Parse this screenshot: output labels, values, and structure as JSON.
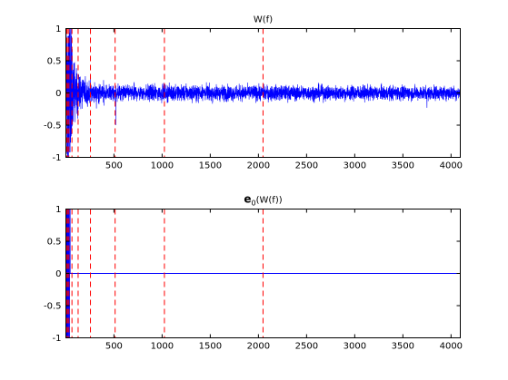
{
  "chart_data": [
    {
      "type": "line",
      "title": "W(f)",
      "xlim": [
        1,
        4096
      ],
      "ylim": [
        -1,
        1
      ],
      "xticks": [
        500,
        1000,
        1500,
        2000,
        2500,
        3000,
        3500,
        4000
      ],
      "yticks": [
        -1,
        -0.5,
        0,
        0.5,
        1
      ],
      "xtick_labels": [
        "500",
        "1000",
        "1500",
        "2000",
        "2500",
        "3000",
        "3500",
        "4000"
      ],
      "ytick_labels": [
        "-1",
        "-0.5",
        "0",
        "0.5",
        "1"
      ],
      "series": [
        {
          "color": "#0000ff",
          "description": "oscillating signal: full amplitude up to ~x=64, decaying to a noise band of about ±0.1 around 0 for the rest of the range; isolated spikes near x=520 (-0.5) and x=3750 (-0.23)",
          "noise_band": 0.1,
          "envelope": [
            [
              1,
              1
            ],
            [
              40,
              1
            ],
            [
              64,
              0.9
            ],
            [
              100,
              0.45
            ],
            [
              150,
              0.3
            ],
            [
              250,
              0.2
            ],
            [
              520,
              0.14
            ],
            [
              4096,
              0.12
            ]
          ]
        }
      ],
      "vlines": {
        "x": [
          2,
          4,
          8,
          16,
          32,
          64,
          128,
          256,
          512,
          1024,
          2048
        ],
        "color": "#ff0000",
        "style": "dashed"
      },
      "grid": false
    },
    {
      "type": "line",
      "title": "e",
      "title_sub": "0",
      "title_rest": "(W(f))",
      "xlim": [
        1,
        4096
      ],
      "ylim": [
        -1,
        1
      ],
      "xticks": [
        500,
        1000,
        1500,
        2000,
        2500,
        3000,
        3500,
        4000
      ],
      "yticks": [
        -1,
        -0.5,
        0,
        0.5,
        1
      ],
      "xtick_labels": [
        "500",
        "1000",
        "1500",
        "2000",
        "2500",
        "3000",
        "3500",
        "4000"
      ],
      "ytick_labels": [
        "-1",
        "-0.5",
        "0",
        "0.5",
        "1"
      ],
      "series": [
        {
          "color": "#0000ff",
          "description": "thresholded signal: a few full-scale spikes below x≈45, zero elsewhere",
          "spikes_x": [
            3,
            6,
            9,
            12,
            16,
            20,
            24,
            28,
            33,
            38,
            44
          ],
          "baseline": 0
        }
      ],
      "vlines": {
        "x": [
          2,
          4,
          8,
          16,
          32,
          64,
          128,
          256,
          512,
          1024,
          2048
        ],
        "color": "#ff0000",
        "style": "dashed"
      },
      "grid": false
    }
  ]
}
